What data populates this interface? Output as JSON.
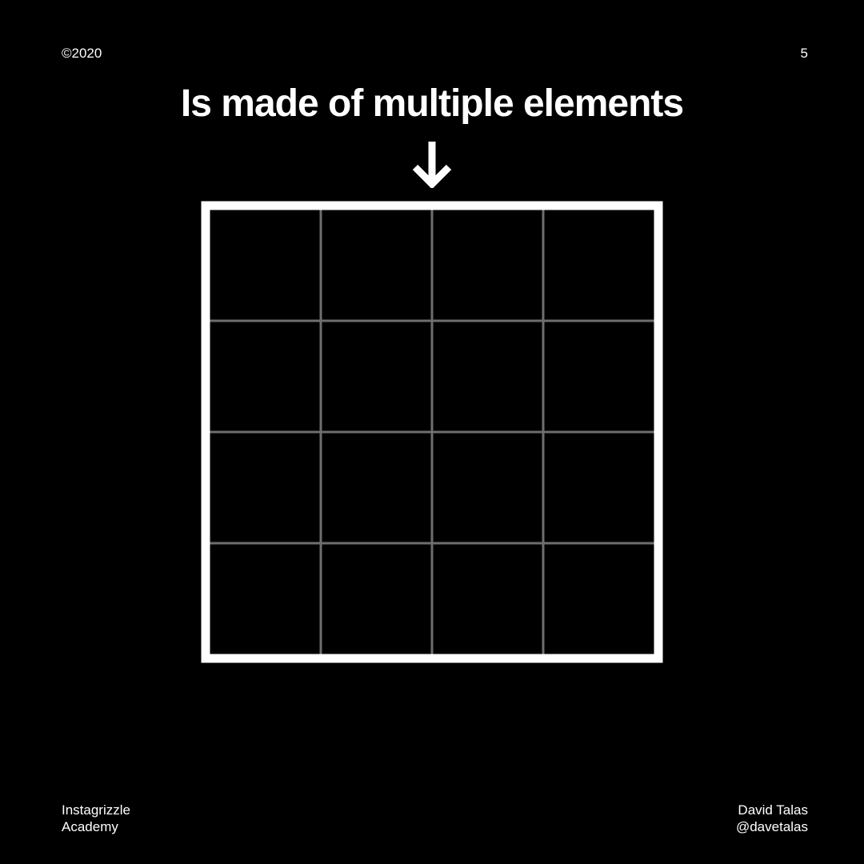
{
  "header": {
    "copyright": "©2020",
    "page_number": "5"
  },
  "headline": "Is made of multiple elements",
  "icons": {
    "arrow": "arrow-down-icon"
  },
  "diagram": {
    "rows": 4,
    "columns": 4,
    "frame_color": "#ffffff",
    "grid_line_color": "#6e6e6e",
    "background_color": "#000000"
  },
  "footer": {
    "left_line1": "Instagrizzle",
    "left_line2": "Academy",
    "right_line1": "David Talas",
    "right_line2": "@davetalas"
  }
}
